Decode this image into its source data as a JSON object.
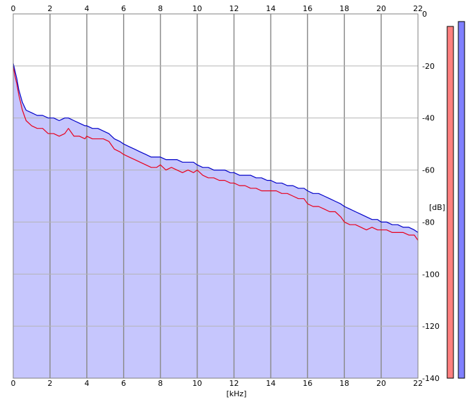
{
  "chart_data": {
    "type": "line",
    "title": "",
    "xlabel": "[kHz]",
    "ylabel": "[dB]",
    "xlim": [
      0,
      22
    ],
    "ylim": [
      -140,
      0
    ],
    "x_ticks": [
      0,
      2,
      4,
      6,
      8,
      10,
      12,
      14,
      16,
      18,
      20,
      22
    ],
    "y_ticks": [
      0,
      -20,
      -40,
      -60,
      -80,
      -100,
      -120,
      -140
    ],
    "grid": true,
    "legend": "none",
    "colors": {
      "fill": "#c6c6fd",
      "series_red": "#e8001c",
      "series_blue": "#0000c8",
      "grid": "#8c8c8c",
      "meter_red": "#ff8080",
      "meter_blue": "#8080ff"
    },
    "series": [
      {
        "color": "#e8001c",
        "x": [
          0.0,
          0.1,
          0.2,
          0.3,
          0.5,
          0.7,
          1.0,
          1.3,
          1.6,
          1.9,
          2.0,
          2.2,
          2.5,
          2.8,
          3.0,
          3.3,
          3.6,
          3.9,
          4.0,
          4.3,
          4.6,
          4.9,
          5.2,
          5.5,
          5.8,
          6.0,
          6.3,
          6.6,
          6.9,
          7.2,
          7.5,
          7.8,
          8.0,
          8.3,
          8.6,
          8.9,
          9.2,
          9.5,
          9.8,
          10.0,
          10.3,
          10.6,
          10.9,
          11.2,
          11.5,
          11.8,
          12.0,
          12.3,
          12.6,
          12.9,
          13.2,
          13.5,
          13.8,
          14.0,
          14.3,
          14.6,
          14.9,
          15.2,
          15.5,
          15.8,
          16.0,
          16.3,
          16.6,
          16.9,
          17.2,
          17.5,
          17.8,
          18.0,
          18.3,
          18.6,
          18.9,
          19.2,
          19.5,
          19.8,
          20.0,
          20.3,
          20.6,
          20.9,
          21.2,
          21.5,
          21.8,
          22.0
        ],
        "values": [
          -20,
          -24,
          -27,
          -31,
          -37,
          -41,
          -43,
          -44,
          -44,
          -46,
          -46,
          -46,
          -47,
          -46,
          -44,
          -47,
          -47,
          -48,
          -47,
          -48,
          -48,
          -48,
          -49,
          -52,
          -53,
          -54,
          -55,
          -56,
          -57,
          -58,
          -59,
          -59,
          -58,
          -60,
          -59,
          -60,
          -61,
          -60,
          -61,
          -60,
          -62,
          -63,
          -63,
          -64,
          -64,
          -65,
          -65,
          -66,
          -66,
          -67,
          -67,
          -68,
          -68,
          -68,
          -68,
          -69,
          -69,
          -70,
          -71,
          -71,
          -73,
          -74,
          -74,
          -75,
          -76,
          -76,
          -78,
          -80,
          -81,
          -81,
          -82,
          -83,
          -82,
          -83,
          -83,
          -83,
          -84,
          -84,
          -84,
          -85,
          -85,
          -87
        ]
      },
      {
        "color": "#0000c8",
        "x": [
          0.0,
          0.1,
          0.2,
          0.3,
          0.5,
          0.7,
          1.0,
          1.3,
          1.6,
          1.9,
          2.0,
          2.2,
          2.5,
          2.8,
          3.0,
          3.3,
          3.6,
          3.9,
          4.0,
          4.3,
          4.6,
          4.9,
          5.2,
          5.5,
          5.8,
          6.0,
          6.3,
          6.6,
          6.9,
          7.2,
          7.5,
          7.8,
          8.0,
          8.3,
          8.6,
          8.9,
          9.2,
          9.5,
          9.8,
          10.0,
          10.3,
          10.6,
          10.9,
          11.2,
          11.5,
          11.8,
          12.0,
          12.3,
          12.6,
          12.9,
          13.2,
          13.5,
          13.8,
          14.0,
          14.3,
          14.6,
          14.9,
          15.2,
          15.5,
          15.8,
          16.0,
          16.3,
          16.6,
          16.9,
          17.2,
          17.5,
          17.8,
          18.0,
          18.3,
          18.6,
          18.9,
          19.2,
          19.5,
          19.8,
          20.0,
          20.3,
          20.6,
          20.9,
          21.2,
          21.5,
          21.8,
          22.0
        ],
        "values": [
          -19,
          -22,
          -25,
          -29,
          -34,
          -37,
          -38,
          -39,
          -39,
          -40,
          -40,
          -40,
          -41,
          -40,
          -40,
          -41,
          -42,
          -43,
          -43,
          -44,
          -44,
          -45,
          -46,
          -48,
          -49,
          -50,
          -51,
          -52,
          -53,
          -54,
          -55,
          -55,
          -55,
          -56,
          -56,
          -56,
          -57,
          -57,
          -57,
          -58,
          -59,
          -59,
          -60,
          -60,
          -60,
          -61,
          -61,
          -62,
          -62,
          -62,
          -63,
          -63,
          -64,
          -64,
          -65,
          -65,
          -66,
          -66,
          -67,
          -67,
          -68,
          -69,
          -69,
          -70,
          -71,
          -72,
          -73,
          -74,
          -75,
          -76,
          -77,
          -78,
          -79,
          -79,
          -80,
          -80,
          -81,
          -81,
          -82,
          -82,
          -83,
          -84
        ]
      }
    ]
  }
}
